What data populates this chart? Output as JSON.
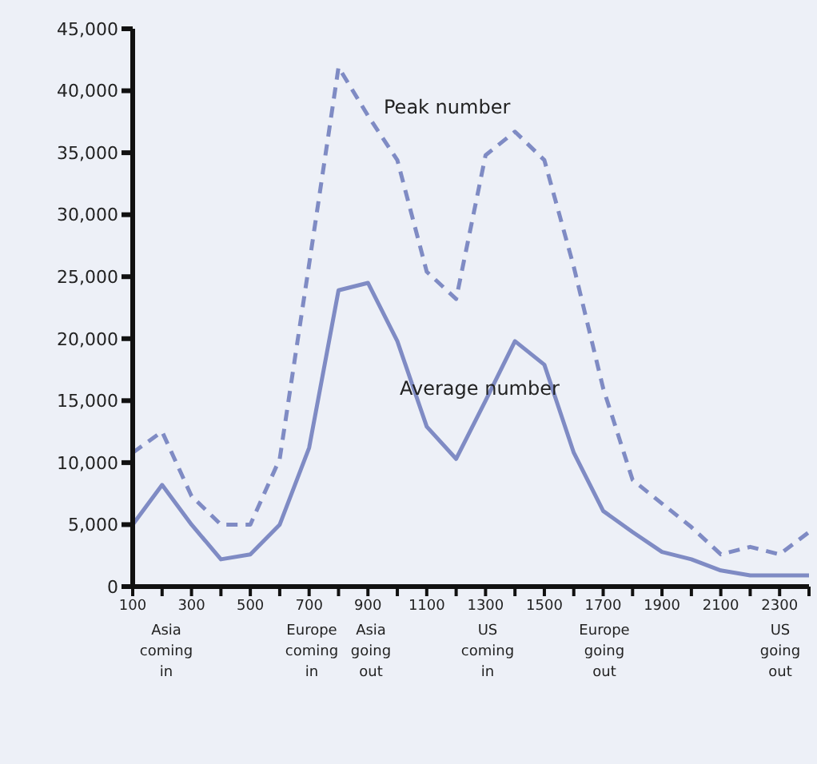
{
  "chart_data": {
    "type": "line",
    "x": [
      100,
      200,
      300,
      400,
      500,
      600,
      700,
      800,
      900,
      1000,
      1100,
      1200,
      1300,
      1400,
      1500,
      1600,
      1700,
      1800,
      1900,
      2000,
      2100,
      2200,
      2300,
      2400
    ],
    "series": [
      {
        "name": "Peak number",
        "color": "#7f8bc4",
        "line_style": "dashed",
        "values": [
          10800,
          12500,
          7300,
          5000,
          5000,
          10300,
          26000,
          41900,
          38000,
          34400,
          25400,
          23200,
          34800,
          36700,
          34400,
          25800,
          16000,
          8600,
          6700,
          4800,
          2600,
          3200,
          2600,
          4400
        ]
      },
      {
        "name": "Average number",
        "color": "#7f8bc4",
        "line_style": "solid",
        "values": [
          5000,
          8200,
          5000,
          2200,
          2600,
          5000,
          11200,
          23900,
          24500,
          19800,
          12900,
          10300,
          15000,
          19800,
          17900,
          10800,
          6100,
          4400,
          2800,
          2200,
          1300,
          900,
          900,
          900
        ]
      }
    ],
    "xlim": [
      100,
      2400
    ],
    "xticks": [
      100,
      {
        "value": 200,
        "label": null
      },
      300,
      {
        "value": 400,
        "label": null
      },
      500,
      {
        "value": 600,
        "label": null
      },
      700,
      {
        "value": 800,
        "label": null
      },
      900,
      {
        "value": 1000,
        "label": null
      },
      1100,
      {
        "value": 1200,
        "label": null
      },
      1300,
      {
        "value": 1400,
        "label": null
      },
      1500,
      {
        "value": 1600,
        "label": null
      },
      1700,
      {
        "value": 1800,
        "label": null
      },
      1900,
      {
        "value": 2000,
        "label": null
      },
      2100,
      {
        "value": 2200,
        "label": null
      },
      2300,
      {
        "value": 2400,
        "label": null
      }
    ],
    "ylim": [
      0,
      45000
    ],
    "yticks": [
      {
        "value": 0,
        "label": "0"
      },
      {
        "value": 5000,
        "label": "5,000"
      },
      {
        "value": 10000,
        "label": "10,000"
      },
      {
        "value": 15000,
        "label": "15,000"
      },
      {
        "value": 20000,
        "label": "20,000"
      },
      {
        "value": 25000,
        "label": "25,000"
      },
      {
        "value": 30000,
        "label": "30,000"
      },
      {
        "value": 35000,
        "label": "35,000"
      },
      {
        "value": 40000,
        "label": "40,000"
      },
      {
        "value": 45000,
        "label": "45,000"
      }
    ],
    "annotations": [
      "Asia coming in",
      "Europe coming in",
      "Asia going out",
      "US coming in",
      "Europe going out",
      "US going out"
    ],
    "grid": false,
    "legend": false,
    "marker": "none"
  }
}
